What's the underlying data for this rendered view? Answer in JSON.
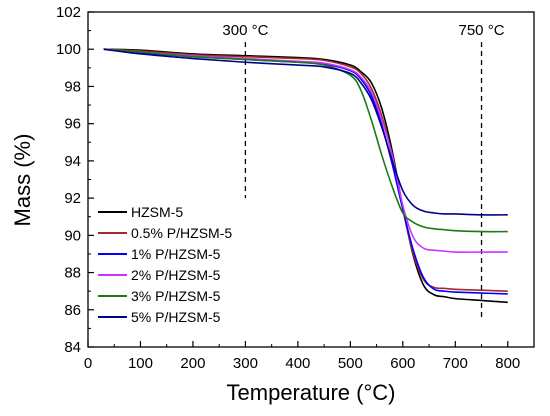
{
  "chart_data": {
    "type": "line",
    "xlabel": "Temperature (°C)",
    "ylabel": "Mass (%)",
    "xlim": [
      0,
      850
    ],
    "ylim": [
      84,
      102
    ],
    "x_ticks": [
      0,
      100,
      200,
      300,
      400,
      500,
      600,
      700,
      800
    ],
    "y_ticks": [
      84,
      86,
      88,
      90,
      92,
      94,
      96,
      98,
      100,
      102
    ],
    "grid": false,
    "legend_position": "bottom-left",
    "annotations": [
      {
        "text": "300 °C",
        "x": 300
      },
      {
        "text": "750 °C",
        "x": 750
      }
    ],
    "x": [
      30,
      100,
      200,
      300,
      400,
      450,
      500,
      520,
      540,
      560,
      580,
      600,
      620,
      640,
      660,
      680,
      700,
      750,
      800
    ],
    "series": [
      {
        "name": "HZSM-5",
        "color": "#000000",
        "values": [
          100,
          99.95,
          99.75,
          99.65,
          99.55,
          99.45,
          99.15,
          98.8,
          98.2,
          96.8,
          94.5,
          91.5,
          88.9,
          87.3,
          86.8,
          86.7,
          86.6,
          86.5,
          86.4
        ]
      },
      {
        "name": "0.5% P/HZSM-5",
        "color": "#a52a2a",
        "values": [
          100,
          99.9,
          99.7,
          99.6,
          99.5,
          99.4,
          99.05,
          98.7,
          97.9,
          96.4,
          94.2,
          91.4,
          89.0,
          87.6,
          87.2,
          87.15,
          87.1,
          87.05,
          87.0
        ]
      },
      {
        "name": "1% P/HZSM-5",
        "color": "#0000ff",
        "values": [
          100,
          99.8,
          99.6,
          99.45,
          99.3,
          99.2,
          98.85,
          98.4,
          97.5,
          95.9,
          93.8,
          91.4,
          89.2,
          87.7,
          87.1,
          87.0,
          86.95,
          86.9,
          86.85
        ]
      },
      {
        "name": "2% P/HZSM-5",
        "color": "#cc33ff",
        "values": [
          100,
          99.85,
          99.65,
          99.5,
          99.35,
          99.25,
          98.9,
          98.5,
          97.7,
          96.2,
          94.3,
          91.6,
          89.9,
          89.3,
          89.2,
          89.15,
          89.1,
          89.1,
          89.1
        ]
      },
      {
        "name": "3% P/HZSM-5",
        "color": "#1a7a1a",
        "values": [
          100,
          99.85,
          99.6,
          99.45,
          99.3,
          99.15,
          98.6,
          97.8,
          96.2,
          94.3,
          92.6,
          91.2,
          90.7,
          90.45,
          90.35,
          90.3,
          90.25,
          90.2,
          90.2
        ]
      },
      {
        "name": "5% P/HZSM-5",
        "color": "#00008b",
        "values": [
          100,
          99.75,
          99.5,
          99.3,
          99.15,
          99.05,
          98.7,
          98.2,
          97.3,
          95.8,
          94.0,
          92.4,
          91.6,
          91.3,
          91.2,
          91.15,
          91.15,
          91.1,
          91.1
        ]
      }
    ]
  }
}
